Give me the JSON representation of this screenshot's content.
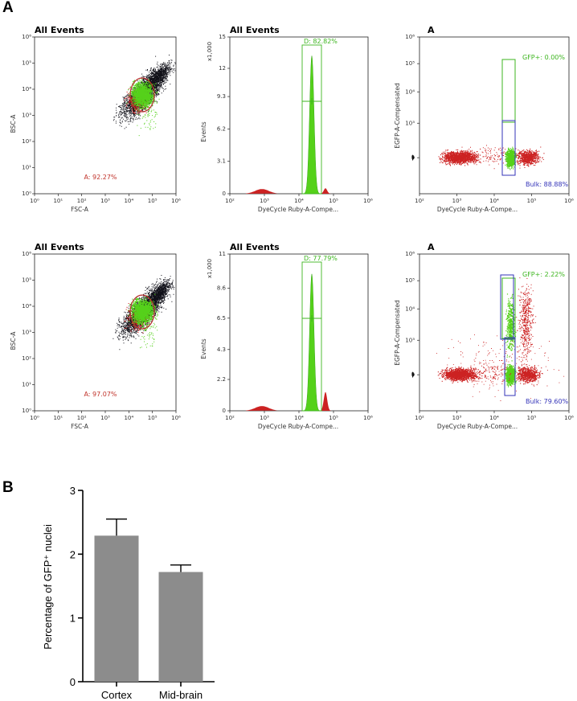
{
  "panel_labels": {
    "a": "A",
    "b": "B"
  },
  "colors": {
    "red": "#cc2222",
    "green": "#55d11a",
    "black": "#101018",
    "blue": "#3333b8",
    "bar": "#8c8c8c"
  },
  "log_ticks": {
    "log_axis": [
      "10⁰",
      "10¹",
      "10²",
      "10³",
      "10⁴",
      "10⁵",
      "10⁶"
    ],
    "hist_x": [
      "10²",
      "10³",
      "10⁴",
      "10⁵",
      "10⁶"
    ],
    "egfp_y": [
      "0",
      "10³",
      "10⁴",
      "10⁵",
      "10⁶"
    ]
  },
  "rows": [
    {
      "scatter": {
        "title": "All Events",
        "xlabel": "FSC-A",
        "ylabel": "BSC-A",
        "gate": "A: 92.27%"
      },
      "hist": {
        "title": "All Events",
        "ymult": "x1,000",
        "ylabel": "Events",
        "xlabel": "DyeCycle Ruby-A-Compe...",
        "yticks": [
          "0",
          "3.1",
          "6.2",
          "9.3",
          "12",
          "15"
        ],
        "ymax": 15,
        "gate": "D: 82.82%",
        "peak": 13.2
      },
      "gfp": {
        "title": "A",
        "xlabel": "DyeCycle Ruby-A-Compe...",
        "ylabel": "EGFP-A-Compensated",
        "gfp_gate": "GFP+: 0.00%",
        "bulk_gate": "Bulk: 88.88%"
      }
    },
    {
      "scatter": {
        "title": "All Events",
        "xlabel": "FSC-A",
        "ylabel": "BSC-A",
        "gate": "A: 97.07%"
      },
      "hist": {
        "title": "All Events",
        "ymult": "x1,000",
        "ylabel": "Events",
        "xlabel": "DyeCycle Ruby-A-Compe...",
        "yticks": [
          "0",
          "2.2",
          "4.3",
          "6.5",
          "8.6",
          "11"
        ],
        "ymax": 11,
        "gate": "D: 77.79%",
        "peak": 9.6
      },
      "gfp": {
        "title": "A",
        "xlabel": "DyeCycle Ruby-A-Compe...",
        "ylabel": "EGFP-A-Compensated",
        "gfp_gate": "GFP+: 2.22%",
        "bulk_gate": "Bulk: 79.60%"
      }
    }
  ],
  "chart_data": {
    "type": "bar",
    "categories": [
      "Cortex",
      "Mid-brain"
    ],
    "values": [
      2.29,
      1.72
    ],
    "errors": [
      0.26,
      0.11
    ],
    "ylabel": "Percentage of GFP⁺ nuclei",
    "xlabel": "",
    "ylim": [
      0,
      3
    ],
    "yticks": [
      "0",
      "1",
      "2",
      "3"
    ]
  }
}
